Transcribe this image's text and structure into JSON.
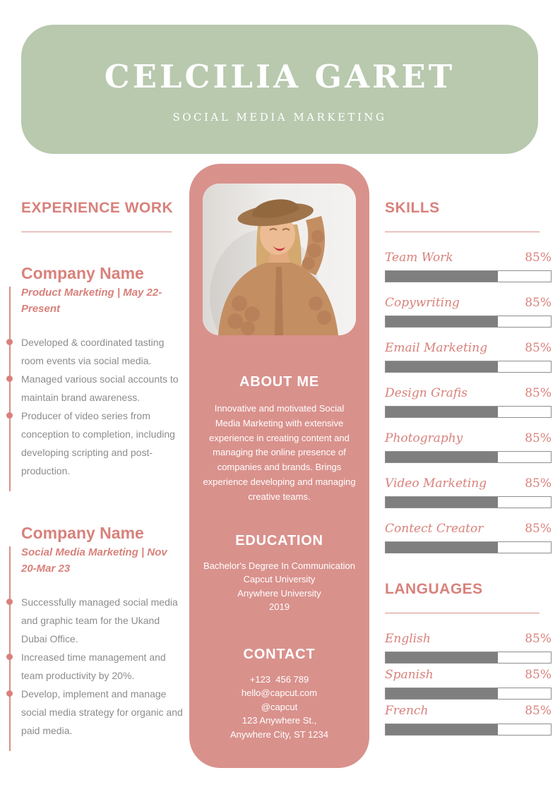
{
  "colors": {
    "header_green": "#b8c9ae",
    "panel_pink": "#d9918c",
    "accent_pink": "#d8817b",
    "body_gray": "#8c8c8c",
    "bar_gray": "#7f7f7f",
    "text_white": "#ffffff"
  },
  "header": {
    "name": "CELCILIA GARET",
    "subtitle": "SOCIAL MEDIA MARKETING"
  },
  "experience": {
    "title": "EXPERIENCE WORK",
    "jobs": [
      {
        "company": "Company Name",
        "role_period": "Product Marketing | May 22-Present",
        "bullets": [
          "Developed & coordinated tasting room events via social media.",
          "Managed various social accounts to maintain brand awareness.",
          "Producer of video series from conception to completion, including developing scripting and post-production."
        ]
      },
      {
        "company": "Company Name",
        "role_period": "Social Media Marketing | Nov 20-Mar 23",
        "bullets": [
          "Successfully managed social media and graphic team for the Ukand Dubai Office.",
          "Increased time management and team productivity by 20%.",
          "Develop, implement and manage social media strategy for organic and paid media."
        ]
      }
    ]
  },
  "profile": {
    "photo_description": "woman in brown hat and chunky knit tan cardigan smiling",
    "about": {
      "title": "ABOUT ME",
      "text": "Innovative and motivated Social Media Marketing with extensive experience in creating content and managing the online presence of companies and brands. Brings experience developing and managing creative teams."
    },
    "education": {
      "title": "EDUCATION",
      "lines": [
        "Bachelor's Degree In Communication",
        "Capcut University",
        "Anywhere University",
        "2019"
      ]
    },
    "contact": {
      "title": "CONTACT",
      "lines": [
        "+123  456 789",
        "hello@capcut.com",
        "@capcut",
        "123 Anywhere St.,",
        "Anywhere City, ST 1234"
      ]
    }
  },
  "skills": {
    "title": "SKILLS",
    "items": [
      {
        "label": "Team Work",
        "value": "85%",
        "fill": 68
      },
      {
        "label": "Copywriting",
        "value": "85%",
        "fill": 68
      },
      {
        "label": "Email Marketing",
        "value": "85%",
        "fill": 68
      },
      {
        "label": "Design Grafis",
        "value": "85%",
        "fill": 68
      },
      {
        "label": "Photography",
        "value": "85%",
        "fill": 68
      },
      {
        "label": "Video Marketing",
        "value": "85%",
        "fill": 68
      },
      {
        "label": "Contect Creator",
        "value": "85%",
        "fill": 68
      }
    ]
  },
  "languages": {
    "title": "LANGUAGES",
    "items": [
      {
        "label": "English",
        "value": "85%",
        "fill": 68
      },
      {
        "label": "Spanish",
        "value": "85%",
        "fill": 68
      },
      {
        "label": "French",
        "value": "85%",
        "fill": 68
      }
    ]
  }
}
